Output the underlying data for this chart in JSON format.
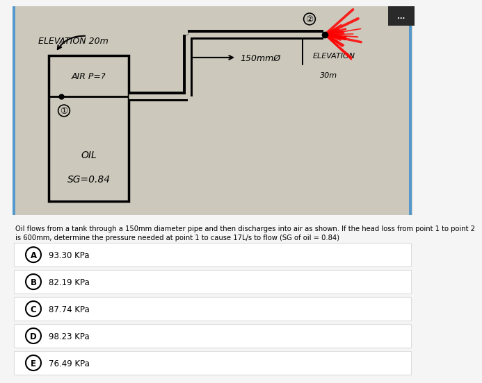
{
  "diagram_bg": "#b8b4aa",
  "inner_bg": "#d4d0c4",
  "title_question": "Oil flows from a tank through a 150mm diameter pipe and then discharges into air as shown. If the head loss from point 1 to point 2\nis 600mm, determine the pressure needed at point 1 to cause 17L/s to flow (SG of oil = 0.84)",
  "choices": [
    {
      "label": "A",
      "text": "93.30 KPa"
    },
    {
      "label": "B",
      "text": "82.19 KPa"
    },
    {
      "label": "C",
      "text": "87.74 KPa"
    },
    {
      "label": "D",
      "text": "98.23 KPa"
    },
    {
      "label": "E",
      "text": "76.49 KPa"
    }
  ],
  "elevation_tank": "ELEVATION 20m",
  "elevation_outlet_line1": "ELEVATION",
  "elevation_outlet_line2": "30m",
  "air_pressure": "AIR P=?",
  "oil_label": "OIL",
  "sg_label": "SG=0.84",
  "pipe_label": "150mmØ",
  "point1_label": "①",
  "point2_label": "②",
  "top_right_dots": "...",
  "top_right_bg": "#2a2a2a",
  "left_border": "#5599cc",
  "right_border": "#5599cc",
  "bottom_area_bg": "#f5f5f5",
  "choice_bg": "#ffffff",
  "choice_border": "#dddddd"
}
